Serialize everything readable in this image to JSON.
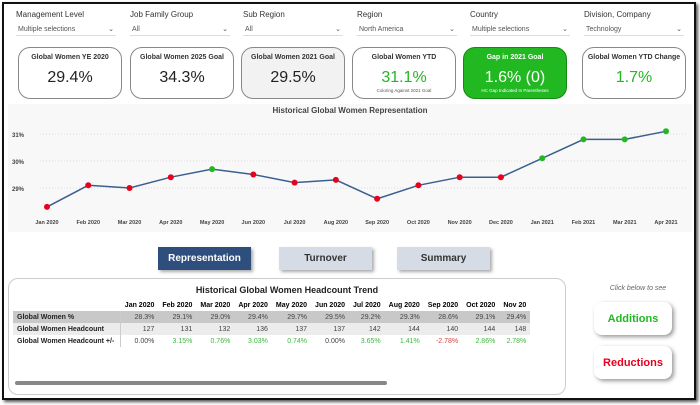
{
  "filters": [
    {
      "label": "Management Level",
      "value": "Multiple selections"
    },
    {
      "label": "Job Family Group",
      "value": "All"
    },
    {
      "label": "Sub Region",
      "value": "All"
    },
    {
      "label": "Region",
      "value": "North America"
    },
    {
      "label": "Country",
      "value": "Multiple selections"
    },
    {
      "label": "Division, Company",
      "value": "Technology"
    }
  ],
  "cards": [
    {
      "title": "Global Women YE 2020",
      "value": "29.4%",
      "sub": ""
    },
    {
      "title": "Global Women 2025 Goal",
      "value": "34.3%",
      "sub": ""
    },
    {
      "title": "Global Women 2021 Goal",
      "value": "29.5%",
      "sub": ""
    },
    {
      "title": "Global Women YTD",
      "value": "31.1%",
      "sub": "Coloring Against 2021 Goal"
    },
    {
      "title": "Gap in 2021 Goal",
      "value": "1.6% (0)",
      "sub": "HC Gap Indicated In Parentheses"
    },
    {
      "title": "Global Women YTD Change",
      "value": "1.7%",
      "sub": ""
    }
  ],
  "colors": {
    "green": "#22b822",
    "red": "#e8001c",
    "line": "#3a5f8f",
    "tab_active": "#2e4e7e",
    "tab_inactive": "#d6dce5"
  },
  "chart_data": {
    "type": "line",
    "title": "Historical Global Women Representation",
    "categories": [
      "Jan 2020",
      "Feb 2020",
      "Mar 2020",
      "Apr 2020",
      "May 2020",
      "Jun 2020",
      "Jul 2020",
      "Aug 2020",
      "Sep 2020",
      "Oct 2020",
      "Nov 2020",
      "Dec 2020",
      "Jan 2021",
      "Feb 2021",
      "Mar 2021",
      "Apr 2021"
    ],
    "values": [
      28.3,
      29.1,
      29.0,
      29.4,
      29.7,
      29.5,
      29.2,
      29.3,
      28.6,
      29.1,
      29.4,
      29.4,
      30.1,
      30.8,
      30.8,
      31.1
    ],
    "marker_colors": [
      "red",
      "red",
      "red",
      "red",
      "green",
      "red",
      "red",
      "red",
      "red",
      "red",
      "red",
      "red",
      "green",
      "green",
      "green",
      "green"
    ],
    "yticks": [
      "29%",
      "30%",
      "31%"
    ],
    "ytick_values": [
      29,
      30,
      31
    ],
    "grid": true
  },
  "tabs": [
    "Representation",
    "Turnover",
    "Summary"
  ],
  "table": {
    "title": "Historical Global Women Headcount Trend",
    "columns": [
      "Jan 2020",
      "Feb 2020",
      "Mar 2020",
      "Apr 2020",
      "May 2020",
      "Jun 2020",
      "Jul 2020",
      "Aug 2020",
      "Sep 2020",
      "Oct 2020",
      "Nov 20"
    ],
    "rows": [
      {
        "label": "Global Women %",
        "cells": [
          "28.3%",
          "29.1%",
          "29.0%",
          "29.4%",
          "29.7%",
          "29.5%",
          "29.2%",
          "29.3%",
          "28.6%",
          "29.1%",
          "29.4%"
        ]
      },
      {
        "label": "Global Women Headcount",
        "cells": [
          "127",
          "131",
          "132",
          "136",
          "137",
          "137",
          "142",
          "144",
          "140",
          "144",
          "148"
        ]
      },
      {
        "label": "Global Women Headcount +/-",
        "cells": [
          "0.00%",
          "3.15%",
          "0.76%",
          "3.03%",
          "0.74%",
          "0.00%",
          "3.65%",
          "1.41%",
          "-2.78%",
          "2.86%",
          "2.78%"
        ]
      }
    ]
  },
  "side": {
    "hint": "Click below to see",
    "additions": "Additions",
    "reductions": "Reductions"
  }
}
